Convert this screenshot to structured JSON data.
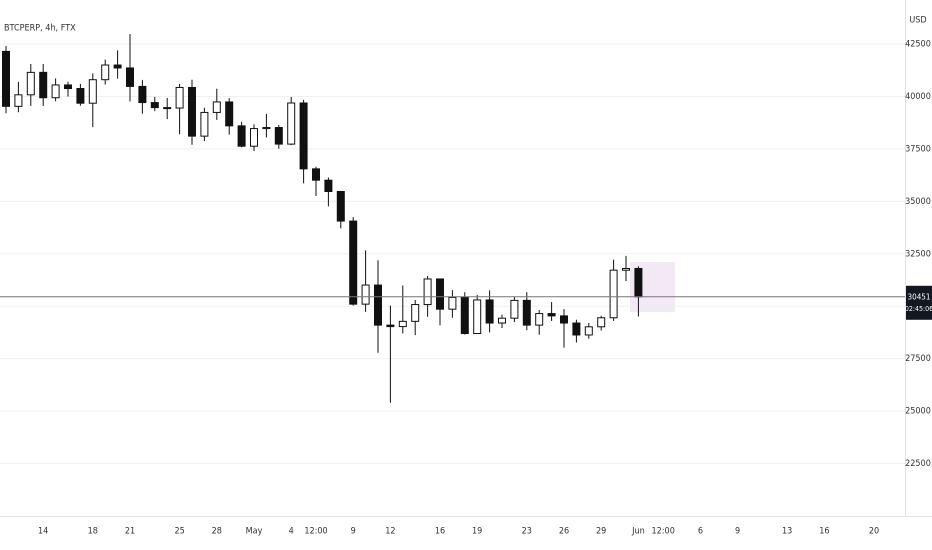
{
  "chart_data": {
    "type": "candlestick",
    "title": "BTCPERP, 4h, FTX",
    "currency": "USD",
    "categories": [
      null,
      null,
      null,
      "14",
      null,
      null,
      null,
      "18",
      null,
      null,
      "21",
      null,
      null,
      null,
      "25",
      null,
      null,
      "28",
      null,
      null,
      "May",
      null,
      null,
      "4",
      null,
      "12:00",
      null,
      null,
      "9",
      null,
      null,
      "12",
      null,
      null,
      null,
      "16",
      null,
      null,
      "19",
      null,
      null,
      null,
      "23",
      null,
      null,
      "26",
      null,
      null,
      "29",
      null,
      null,
      "Jun",
      null,
      "12:00",
      null,
      null,
      "6",
      null,
      null,
      "9",
      null,
      null,
      null,
      "13",
      null,
      null,
      "16",
      null,
      null,
      null,
      "20",
      null,
      null,
      null
    ],
    "open": [
      42150,
      39530,
      40080,
      41150,
      39940,
      40550,
      40380,
      39680,
      40800,
      41500,
      41360,
      40480,
      39710,
      39470,
      39450,
      40430,
      38110,
      39240,
      39740,
      38600,
      37630,
      38470,
      38520,
      37730,
      39690,
      36550,
      36010,
      35470,
      34060,
      30100,
      31010,
      29100,
      29030,
      29280,
      30080,
      31300,
      29860,
      30420,
      28700,
      30300,
      29200,
      29430,
      30280,
      29100,
      29650,
      29540,
      29200,
      28630,
      29020,
      29450,
      31720,
      31800,
      null,
      null,
      null,
      null,
      null,
      null,
      null,
      null,
      null,
      null,
      null,
      null,
      null,
      null,
      null,
      null,
      null,
      null,
      null,
      null,
      null,
      null
    ],
    "high": [
      42400,
      40700,
      41550,
      41550,
      40860,
      40700,
      40600,
      41100,
      41760,
      42200,
      42980,
      40790,
      39980,
      39930,
      40600,
      40800,
      39460,
      40370,
      39920,
      38790,
      38670,
      39170,
      38640,
      39980,
      39840,
      36650,
      36140,
      35500,
      34250,
      32660,
      32190,
      30030,
      30990,
      30300,
      31440,
      31300,
      30770,
      30670,
      30540,
      30760,
      29600,
      30450,
      30670,
      29820,
      30200,
      29860,
      29360,
      29200,
      29550,
      32220,
      32400,
      31900,
      null,
      null,
      null,
      null,
      null,
      null,
      null,
      null,
      null,
      null,
      null,
      null,
      null,
      null,
      null,
      null,
      null,
      null,
      null,
      null,
      null,
      null
    ],
    "low": [
      39200,
      39250,
      39550,
      39550,
      39770,
      40000,
      39560,
      38540,
      40570,
      40850,
      39760,
      39180,
      39300,
      38920,
      38200,
      37700,
      37870,
      38880,
      38180,
      37580,
      37400,
      38050,
      37510,
      37680,
      35860,
      35260,
      34760,
      33710,
      30030,
      29730,
      27780,
      25400,
      28700,
      28620,
      29500,
      29090,
      29450,
      28650,
      28680,
      28750,
      28960,
      29250,
      28860,
      28640,
      29300,
      28030,
      28270,
      28450,
      28840,
      29300,
      31200,
      29510,
      null,
      null,
      null,
      null,
      null,
      null,
      null,
      null,
      null,
      null,
      null,
      null,
      null,
      null,
      null,
      null,
      null,
      null,
      null,
      null,
      null,
      null
    ],
    "close": [
      39530,
      40080,
      41150,
      39940,
      40550,
      40380,
      39680,
      40800,
      41500,
      41360,
      40480,
      39710,
      39470,
      39450,
      40430,
      38110,
      39240,
      39740,
      38600,
      37630,
      38470,
      38520,
      37730,
      39690,
      36550,
      36010,
      35470,
      34060,
      30100,
      31010,
      29100,
      29030,
      29280,
      30080,
      31300,
      29860,
      30420,
      28700,
      30300,
      29200,
      29430,
      30280,
      29100,
      29650,
      29540,
      29200,
      28630,
      29020,
      29450,
      31720,
      31800,
      30451,
      null,
      null,
      null,
      null,
      null,
      null,
      null,
      null,
      null,
      null,
      null,
      null,
      null,
      null,
      null,
      null,
      null,
      null,
      null,
      null,
      null,
      null
    ],
    "last_price": 30451,
    "countdown": "02:45:06",
    "ylim": [
      20000,
      44600
    ],
    "yticks": [
      22500,
      25000,
      27500,
      30000,
      32500,
      35000,
      37500,
      40000,
      42500
    ],
    "grid": true
  }
}
